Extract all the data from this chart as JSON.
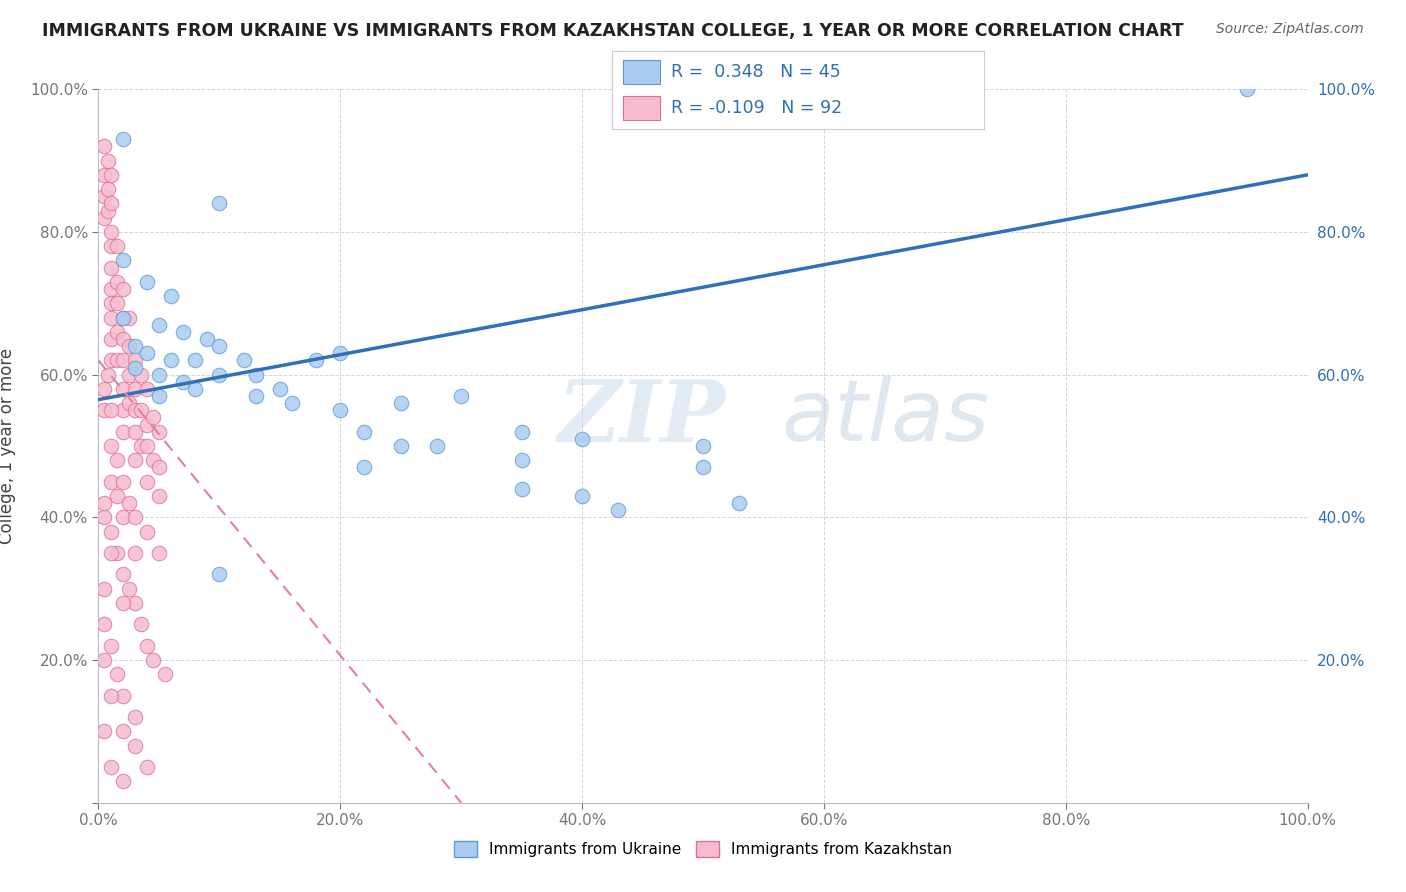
{
  "title": "IMMIGRANTS FROM UKRAINE VS IMMIGRANTS FROM KAZAKHSTAN COLLEGE, 1 YEAR OR MORE CORRELATION CHART",
  "source": "Source: ZipAtlas.com",
  "ylabel": "College, 1 year or more",
  "xlim": [
    0,
    1.0
  ],
  "ylim": [
    0,
    1.0
  ],
  "xticklabels": [
    "0.0%",
    "20.0%",
    "40.0%",
    "60.0%",
    "80.0%",
    "100.0%"
  ],
  "yticklabels": [
    "",
    "20.0%",
    "40.0%",
    "60.0%",
    "80.0%",
    "100.0%"
  ],
  "ukraine_color": "#aaccf0",
  "ukraine_edge_color": "#5b9bd5",
  "kazakhstan_color": "#f5bcd0",
  "kazakhstan_edge_color": "#e07090",
  "ukraine_R": 0.348,
  "ukraine_N": 45,
  "kazakhstan_R": -0.109,
  "kazakhstan_N": 92,
  "ukraine_line_x0": 0.0,
  "ukraine_line_y0": 0.565,
  "ukraine_line_x1": 1.0,
  "ukraine_line_y1": 0.88,
  "kazakhstan_line_x0": 0.0,
  "kazakhstan_line_y0": 0.62,
  "kazakhstan_line_x1": 0.3,
  "kazakhstan_line_y1": 0.0,
  "ukraine_scatter_x": [
    0.02,
    0.1,
    0.02,
    0.04,
    0.06,
    0.02,
    0.05,
    0.07,
    0.09,
    0.03,
    0.04,
    0.06,
    0.08,
    0.03,
    0.05,
    0.07,
    0.1,
    0.12,
    0.08,
    0.05,
    0.1,
    0.13,
    0.15,
    0.18,
    0.2,
    0.13,
    0.16,
    0.2,
    0.25,
    0.3,
    0.22,
    0.25,
    0.28,
    0.35,
    0.4,
    0.22,
    0.35,
    0.5,
    0.35,
    0.4,
    0.5,
    0.43,
    0.53,
    0.95,
    0.1
  ],
  "ukraine_scatter_y": [
    0.93,
    0.84,
    0.76,
    0.73,
    0.71,
    0.68,
    0.67,
    0.66,
    0.65,
    0.64,
    0.63,
    0.62,
    0.62,
    0.61,
    0.6,
    0.59,
    0.6,
    0.62,
    0.58,
    0.57,
    0.64,
    0.6,
    0.58,
    0.62,
    0.63,
    0.57,
    0.56,
    0.55,
    0.56,
    0.57,
    0.52,
    0.5,
    0.5,
    0.52,
    0.51,
    0.47,
    0.48,
    0.5,
    0.44,
    0.43,
    0.47,
    0.41,
    0.42,
    1.0,
    0.32
  ],
  "kazakhstan_scatter_x": [
    0.005,
    0.005,
    0.005,
    0.005,
    0.008,
    0.008,
    0.008,
    0.01,
    0.01,
    0.01,
    0.01,
    0.01,
    0.01,
    0.01,
    0.01,
    0.01,
    0.01,
    0.015,
    0.015,
    0.015,
    0.015,
    0.015,
    0.02,
    0.02,
    0.02,
    0.02,
    0.02,
    0.02,
    0.02,
    0.025,
    0.025,
    0.025,
    0.025,
    0.03,
    0.03,
    0.03,
    0.03,
    0.03,
    0.035,
    0.035,
    0.035,
    0.04,
    0.04,
    0.04,
    0.04,
    0.045,
    0.045,
    0.05,
    0.05,
    0.05,
    0.005,
    0.005,
    0.008,
    0.01,
    0.01,
    0.01,
    0.015,
    0.015,
    0.02,
    0.02,
    0.025,
    0.03,
    0.03,
    0.04,
    0.05,
    0.005,
    0.01,
    0.015,
    0.02,
    0.025,
    0.03,
    0.035,
    0.04,
    0.045,
    0.055,
    0.005,
    0.005,
    0.01,
    0.015,
    0.02,
    0.03,
    0.005,
    0.01,
    0.02,
    0.03,
    0.04,
    0.005,
    0.01,
    0.02,
    0.005,
    0.01,
    0.02
  ],
  "kazakhstan_scatter_y": [
    0.92,
    0.88,
    0.85,
    0.82,
    0.9,
    0.86,
    0.83,
    0.88,
    0.84,
    0.8,
    0.78,
    0.75,
    0.72,
    0.7,
    0.68,
    0.65,
    0.62,
    0.78,
    0.73,
    0.7,
    0.66,
    0.62,
    0.72,
    0.68,
    0.65,
    0.62,
    0.58,
    0.55,
    0.52,
    0.68,
    0.64,
    0.6,
    0.56,
    0.62,
    0.58,
    0.55,
    0.52,
    0.48,
    0.6,
    0.55,
    0.5,
    0.58,
    0.53,
    0.5,
    0.45,
    0.54,
    0.48,
    0.52,
    0.47,
    0.43,
    0.58,
    0.55,
    0.6,
    0.55,
    0.5,
    0.45,
    0.48,
    0.43,
    0.45,
    0.4,
    0.42,
    0.4,
    0.35,
    0.38,
    0.35,
    0.4,
    0.38,
    0.35,
    0.32,
    0.3,
    0.28,
    0.25,
    0.22,
    0.2,
    0.18,
    0.3,
    0.25,
    0.22,
    0.18,
    0.15,
    0.12,
    0.2,
    0.15,
    0.1,
    0.08,
    0.05,
    0.1,
    0.05,
    0.03,
    0.42,
    0.35,
    0.28
  ],
  "watermark_zip": "ZIP",
  "watermark_atlas": "atlas",
  "legend_R_color": "#3070b0",
  "legend_label_ukraine": "Immigrants from Ukraine",
  "legend_label_kazakhstan": "Immigrants from Kazakhstan"
}
